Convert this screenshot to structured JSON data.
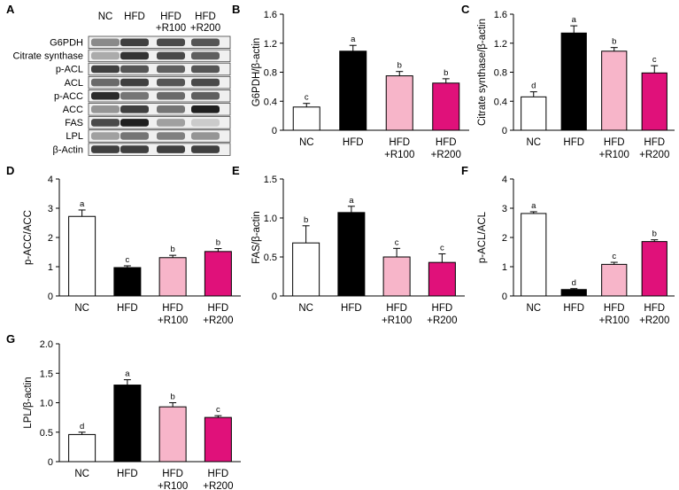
{
  "figure": {
    "panel_A": {
      "letter": "A",
      "lanes": [
        "NC",
        "HFD",
        "HFD\n+R100",
        "HFD\n+R200"
      ],
      "proteins": [
        "G6PDH",
        "Citrate synthase",
        "p-ACL",
        "ACL",
        "p-ACC",
        "ACC",
        "FAS",
        "LPL",
        "β-Actin"
      ],
      "band_intensity": [
        [
          0.45,
          0.8,
          0.75,
          0.7
        ],
        [
          0.3,
          0.85,
          0.75,
          0.65
        ],
        [
          0.8,
          0.7,
          0.65,
          0.7
        ],
        [
          0.6,
          0.8,
          0.7,
          0.75
        ],
        [
          0.9,
          0.55,
          0.6,
          0.65
        ],
        [
          0.4,
          0.8,
          0.55,
          0.95
        ],
        [
          0.75,
          0.95,
          0.35,
          0.15
        ],
        [
          0.35,
          0.55,
          0.5,
          0.4
        ],
        [
          0.8,
          0.8,
          0.8,
          0.8
        ]
      ]
    }
  },
  "colors": {
    "NC": "#ffffff",
    "HFD": "#000000",
    "HFD+R100": "#f7b5c9",
    "HFD+R200": "#e0117a"
  },
  "chart_data": [
    {
      "panel": "B",
      "type": "bar",
      "categories": [
        "NC",
        "HFD",
        "HFD\n+R100",
        "HFD\n+R200"
      ],
      "values": [
        0.32,
        1.09,
        0.75,
        0.65
      ],
      "errors": [
        0.05,
        0.08,
        0.06,
        0.06
      ],
      "letters": [
        "c",
        "a",
        "b",
        "b"
      ],
      "ylabel": "G6PDH/β-actin",
      "ylim": [
        0,
        1.6
      ],
      "yticks": [
        "0",
        "0.4",
        "0.8",
        "1.2",
        "1.6"
      ]
    },
    {
      "panel": "C",
      "type": "bar",
      "categories": [
        "NC",
        "HFD",
        "HFD\n+R100",
        "HFD\n+R200"
      ],
      "values": [
        0.46,
        1.34,
        1.09,
        0.79
      ],
      "errors": [
        0.07,
        0.1,
        0.05,
        0.1
      ],
      "letters": [
        "d",
        "a",
        "b",
        "c"
      ],
      "ylabel": "Citrate synthase/β-actin",
      "ylim": [
        0,
        1.6
      ],
      "yticks": [
        "0",
        "0.4",
        "0.8",
        "1.2",
        "1.6"
      ]
    },
    {
      "panel": "D",
      "type": "bar",
      "categories": [
        "NC",
        "HFD",
        "HFD\n+R100",
        "HFD\n+R200"
      ],
      "values": [
        2.72,
        0.97,
        1.31,
        1.52
      ],
      "errors": [
        0.22,
        0.06,
        0.08,
        0.1
      ],
      "letters": [
        "a",
        "c",
        "b",
        "b"
      ],
      "ylabel": "p-ACC/ACC",
      "ylim": [
        0,
        4
      ],
      "yticks": [
        "0",
        "1",
        "2",
        "3",
        "4"
      ]
    },
    {
      "panel": "E",
      "type": "bar",
      "categories": [
        "NC",
        "HFD",
        "HFD\n+R100",
        "HFD\n+R200"
      ],
      "values": [
        0.68,
        1.07,
        0.5,
        0.43
      ],
      "errors": [
        0.22,
        0.08,
        0.11,
        0.11
      ],
      "letters": [
        "b",
        "a",
        "c",
        "c"
      ],
      "ylabel": "FAS/β-actin",
      "ylim": [
        0,
        1.5
      ],
      "yticks": [
        "0",
        "0.5",
        "1.0",
        "1.5"
      ]
    },
    {
      "panel": "F",
      "type": "bar",
      "categories": [
        "NC",
        "HFD",
        "HFD\n+R100",
        "HFD\n+R200"
      ],
      "values": [
        2.82,
        0.22,
        1.08,
        1.86
      ],
      "errors": [
        0.06,
        0.03,
        0.07,
        0.06
      ],
      "letters": [
        "a",
        "d",
        "c",
        "b"
      ],
      "ylabel": "p-ACL/ACL",
      "ylim": [
        0,
        4
      ],
      "yticks": [
        "0",
        "1",
        "2",
        "3",
        "4"
      ]
    },
    {
      "panel": "G",
      "type": "bar",
      "categories": [
        "NC",
        "HFD",
        "HFD\n+R100",
        "HFD\n+R200"
      ],
      "values": [
        0.46,
        1.3,
        0.93,
        0.75
      ],
      "errors": [
        0.04,
        0.09,
        0.07,
        0.03
      ],
      "letters": [
        "d",
        "a",
        "b",
        "c"
      ],
      "ylabel": "LPL/β-actin",
      "ylim": [
        0,
        2.0
      ],
      "yticks": [
        "0",
        "0.5",
        "1.0",
        "1.5",
        "2.0"
      ]
    }
  ]
}
